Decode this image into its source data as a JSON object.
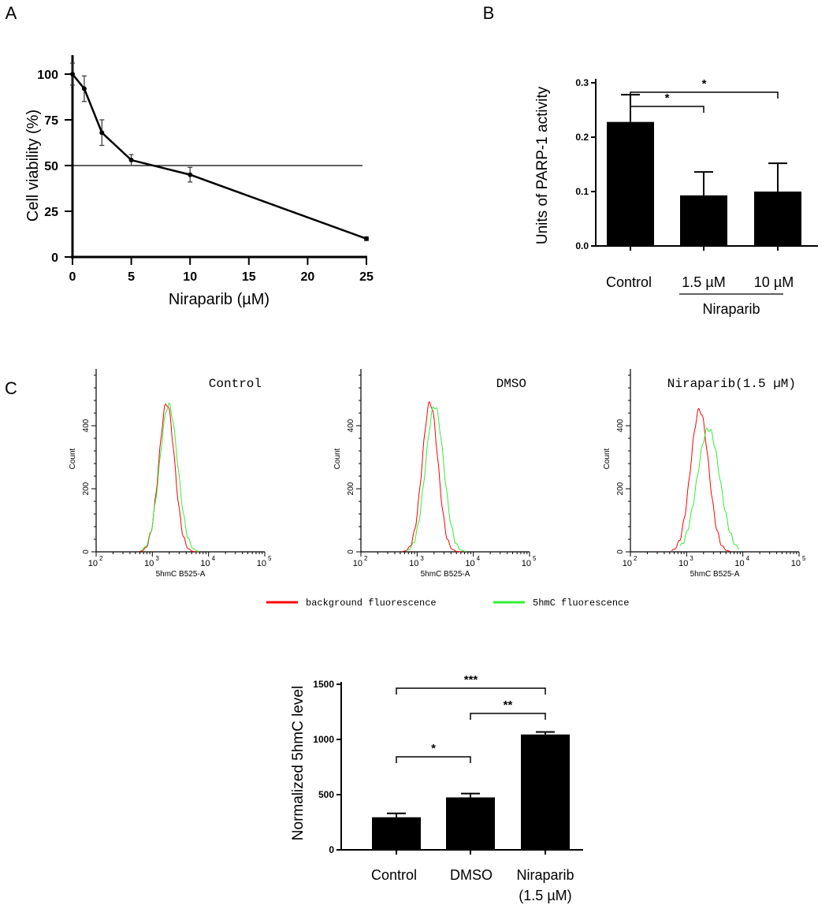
{
  "panel_labels": [
    "A",
    "B",
    "C"
  ],
  "chart_data": [
    {
      "id": "A",
      "type": "line",
      "title": "",
      "xlabel": "Niraparib (µM)",
      "ylabel": "Cell viability (%)",
      "xlim": [
        0,
        25
      ],
      "ylim": [
        0,
        100
      ],
      "xticks": [
        0,
        5,
        10,
        15,
        20,
        25
      ],
      "yticks": [
        0,
        25,
        50,
        75,
        100
      ],
      "x": [
        0,
        1,
        2.5,
        5,
        10,
        25
      ],
      "y": [
        100,
        92,
        68,
        53,
        45,
        10
      ],
      "error": [
        6,
        7,
        7,
        3,
        4,
        1
      ],
      "reference_line_y": 50
    },
    {
      "id": "B",
      "type": "bar",
      "ylabel": "Units of PARP-1 activity",
      "ylim": [
        0,
        0.3
      ],
      "yticks": [
        "0.0",
        "0.1",
        "0.2",
        "0.3"
      ],
      "categories": [
        "Control",
        "1.5 µM",
        "10 µM"
      ],
      "group_label": "Niraparib",
      "values": [
        0.228,
        0.093,
        0.1
      ],
      "error": [
        0.05,
        0.043,
        0.052
      ],
      "significance": [
        {
          "from": 0,
          "to": 1,
          "label": "*"
        },
        {
          "from": 0,
          "to": 2,
          "label": "*"
        }
      ]
    },
    {
      "id": "C-histograms",
      "type": "area",
      "xlabel": "5hmC B525-A",
      "ylabel": "Count",
      "xscale": "log",
      "xlim": [
        100,
        100000
      ],
      "xticks": [
        "10",
        "10",
        "10",
        "10"
      ],
      "xtick_exponents": [
        "2",
        "3",
        "4",
        "5"
      ],
      "yticks": [
        "0",
        "200",
        "400"
      ],
      "legend": [
        {
          "label": "background fluorescence",
          "color": "#ff0000"
        },
        {
          "label": "5hmC fluorescence",
          "color": "#33ee33"
        }
      ],
      "panels": [
        {
          "title": "Control",
          "red": {
            "peak": 1800,
            "height": 470,
            "spread": 0.14
          },
          "green": {
            "peak": 1950,
            "height": 465,
            "spread": 0.16
          }
        },
        {
          "title": "DMSO",
          "red": {
            "peak": 1700,
            "height": 472,
            "spread": 0.14
          },
          "green": {
            "peak": 2050,
            "height": 462,
            "spread": 0.16
          }
        },
        {
          "title": "Niraparib(1.5 µM)",
          "red": {
            "peak": 1700,
            "height": 450,
            "spread": 0.16
          },
          "green": {
            "peak": 2450,
            "height": 390,
            "spread": 0.2
          }
        }
      ]
    },
    {
      "id": "C-bar",
      "type": "bar",
      "ylabel": "Normalized 5hmC level",
      "ylim": [
        0,
        1500
      ],
      "yticks": [
        "0",
        "500",
        "1000",
        "1500"
      ],
      "categories": [
        "Control",
        "DMSO",
        "Niraparib"
      ],
      "category_sublabel": "(1.5 µM)",
      "values": [
        295,
        475,
        1045
      ],
      "error": [
        35,
        35,
        23
      ],
      "significance": [
        {
          "from": 0,
          "to": 1,
          "label": "*"
        },
        {
          "from": 1,
          "to": 2,
          "label": "**"
        },
        {
          "from": 0,
          "to": 2,
          "label": "***"
        }
      ]
    }
  ]
}
